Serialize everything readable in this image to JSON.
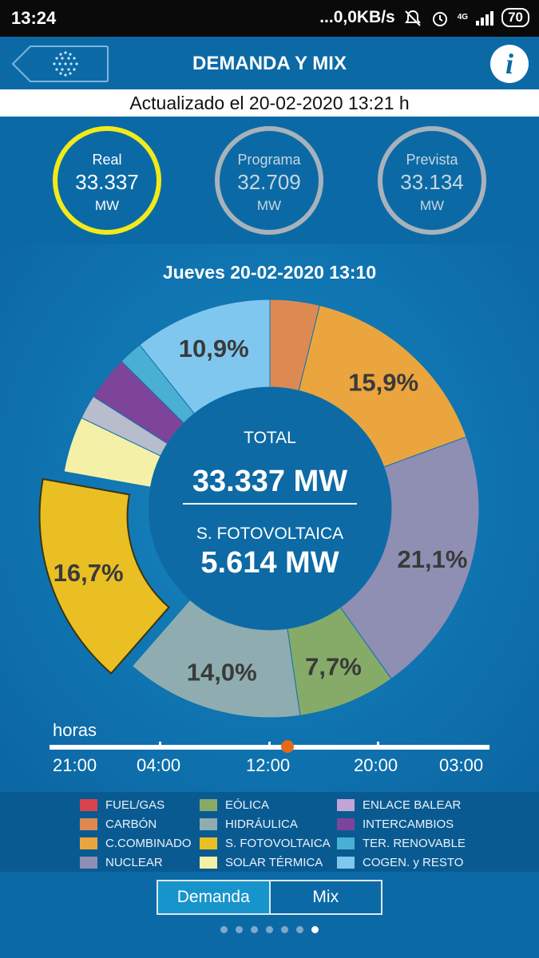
{
  "status_bar": {
    "time": "13:24",
    "network_speed": "...0,0KB/s",
    "network_type": "4G",
    "battery": "70",
    "icons": [
      "bell-off-icon",
      "alarm-icon",
      "signal-icon"
    ]
  },
  "header": {
    "title": "DEMANDA Y MIX",
    "back_icon": "globe-dots-icon",
    "info_label": "i"
  },
  "updated_text": "Actualizado el 20-02-2020 13:21 h",
  "summary": [
    {
      "label": "Real",
      "value": "33.337",
      "unit": "MW",
      "active": true
    },
    {
      "label": "Programa",
      "value": "32.709",
      "unit": "MW",
      "active": false
    },
    {
      "label": "Prevista",
      "value": "33.134",
      "unit": "MW",
      "active": false
    }
  ],
  "chart_title": "Jueves 20-02-2020 13:10",
  "center": {
    "total_label": "TOTAL",
    "total_value": "33.337 MW",
    "selected_label": "S. FOTOVOLTAICA",
    "selected_value": "5.614 MW"
  },
  "chart_data": {
    "type": "pie",
    "donut": true,
    "highlighted": "S. FOTOVOLTAICA",
    "slices": [
      {
        "name": "CARBÓN",
        "percent": 3.9,
        "label": "",
        "color": "#dd8a52"
      },
      {
        "name": "C.COMBINADO",
        "percent": 15.9,
        "label": "15,9%",
        "color": "#eba53e"
      },
      {
        "name": "NUCLEAR",
        "percent": 21.1,
        "label": "21,1%",
        "color": "#8f8eb3"
      },
      {
        "name": "EÓLICA",
        "percent": 7.7,
        "label": "7,7%",
        "color": "#86ab68"
      },
      {
        "name": "HIDRÁULICA",
        "percent": 14.0,
        "label": "14,0%",
        "color": "#8fadb0"
      },
      {
        "name": "S. FOTOVOLTAICA",
        "percent": 16.7,
        "label": "16,7%",
        "color": "#e9bf24"
      },
      {
        "name": "SOLAR TÉRMICA",
        "percent": 4.4,
        "label": "",
        "color": "#f5f0a8"
      },
      {
        "name": "ENLACE BALEAR",
        "percent": 1.9,
        "label": "",
        "color": "#b8bccb"
      },
      {
        "name": "INTERCAMBIOS",
        "percent": 3.5,
        "label": "",
        "color": "#7d449a"
      },
      {
        "name": "TER. RENOVABLE",
        "percent": 1.9,
        "label": "",
        "color": "#4ab0d3"
      },
      {
        "name": "COGEN. y RESTO",
        "percent": 10.9,
        "label": "10,9%",
        "color": "#80c7ef"
      }
    ]
  },
  "timeline": {
    "label": "horas",
    "times": [
      "21:00",
      "04:00",
      "12:00",
      "20:00",
      "03:00"
    ],
    "current_fraction": 0.54
  },
  "legend": [
    {
      "name": "FUEL/GAS",
      "color": "#d9434c"
    },
    {
      "name": "CARBÓN",
      "color": "#dd8a52"
    },
    {
      "name": "C.COMBINADO",
      "color": "#eba53e"
    },
    {
      "name": "NUCLEAR",
      "color": "#8f8eb3"
    },
    {
      "name": "EÓLICA",
      "color": "#86ab68"
    },
    {
      "name": "HIDRÁULICA",
      "color": "#8fadb0"
    },
    {
      "name": "S. FOTOVOLTAICA",
      "color": "#e9bf24"
    },
    {
      "name": "SOLAR TÉRMICA",
      "color": "#f5f0a8"
    },
    {
      "name": "ENLACE BALEAR",
      "color": "#c3a4d6"
    },
    {
      "name": "INTERCAMBIOS",
      "color": "#7d449a"
    },
    {
      "name": "TER. RENOVABLE",
      "color": "#4ab0d3"
    },
    {
      "name": "COGEN. y RESTO",
      "color": "#80c7ef"
    }
  ],
  "toggle": {
    "options": [
      "Demanda",
      "Mix"
    ],
    "selected": "Demanda"
  },
  "page_dots": {
    "count": 7,
    "active": 7
  }
}
